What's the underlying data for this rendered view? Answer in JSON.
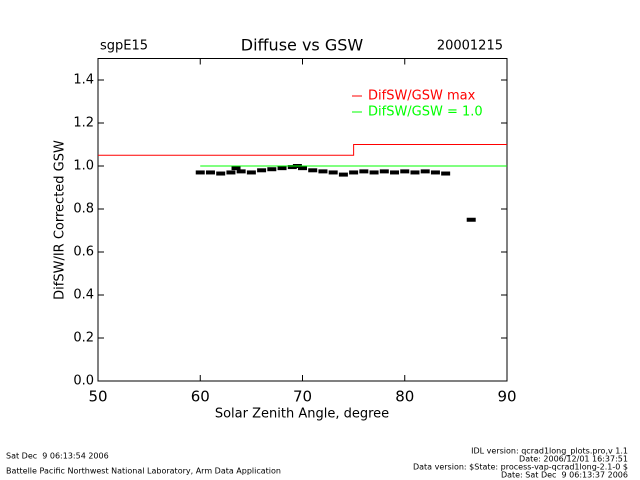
{
  "chart_data": {
    "type": "scatter",
    "title": "Diffuse vs GSW",
    "site": "sgpE15",
    "date": "20001215",
    "x_label": "Solar Zenith Angle, degree",
    "y_label": "DifSW/IR Corrected GSW",
    "xlim": [
      50,
      90
    ],
    "xticks": [
      50,
      60,
      70,
      80,
      90
    ],
    "ylim": [
      0,
      1.5
    ],
    "yticks": [
      {
        "value": 0,
        "label": "0.0"
      },
      0.2,
      0.4,
      0.6,
      0.8,
      {
        "value": 1,
        "label": "1.0"
      },
      1.2,
      1.4
    ],
    "legend": "upper right",
    "series": [
      {
        "mode": "markers",
        "color": "#000000",
        "x": [
          60,
          61,
          62,
          63,
          63.5,
          64,
          65,
          66,
          67,
          68,
          69,
          69.5,
          70,
          71,
          72,
          73,
          74,
          75,
          76,
          77,
          78,
          79,
          80,
          81,
          82,
          83,
          84,
          86.5
        ],
        "values": [
          0.97,
          0.97,
          0.965,
          0.97,
          0.99,
          0.975,
          0.97,
          0.98,
          0.985,
          0.99,
          0.995,
          1.0,
          0.99,
          0.98,
          0.975,
          0.97,
          0.96,
          0.97,
          0.975,
          0.97,
          0.975,
          0.97,
          0.975,
          0.97,
          0.975,
          0.97,
          0.965,
          0.75
        ]
      },
      {
        "mode": "lines",
        "name": "DifSW/GSW max",
        "color": "#ff0000",
        "x": [
          50,
          75,
          75,
          90
        ],
        "values": [
          1.05,
          1.05,
          1.1,
          1.1
        ]
      },
      {
        "mode": "lines",
        "name": "DifSW/GSW = 1.0",
        "color": "#00ff00",
        "x": [
          60,
          90
        ],
        "values": [
          1,
          1
        ]
      }
    ]
  },
  "footer": {
    "run_date": "Sat Dec  9 06:13:54 2006",
    "organization": "Battelle Pacific Northwest National Laboratory, Arm Data Application",
    "idl_version": "IDL version: qcrad1long_plots.pro,v 1.1",
    "idl_date": "Date: 2006/12/01 16:37:51",
    "data_version": "Data version: $State: process-vap-qcrad1long-2.1-0 $",
    "data_date": "Date: Sat Dec  9 06:13:37 2006"
  }
}
